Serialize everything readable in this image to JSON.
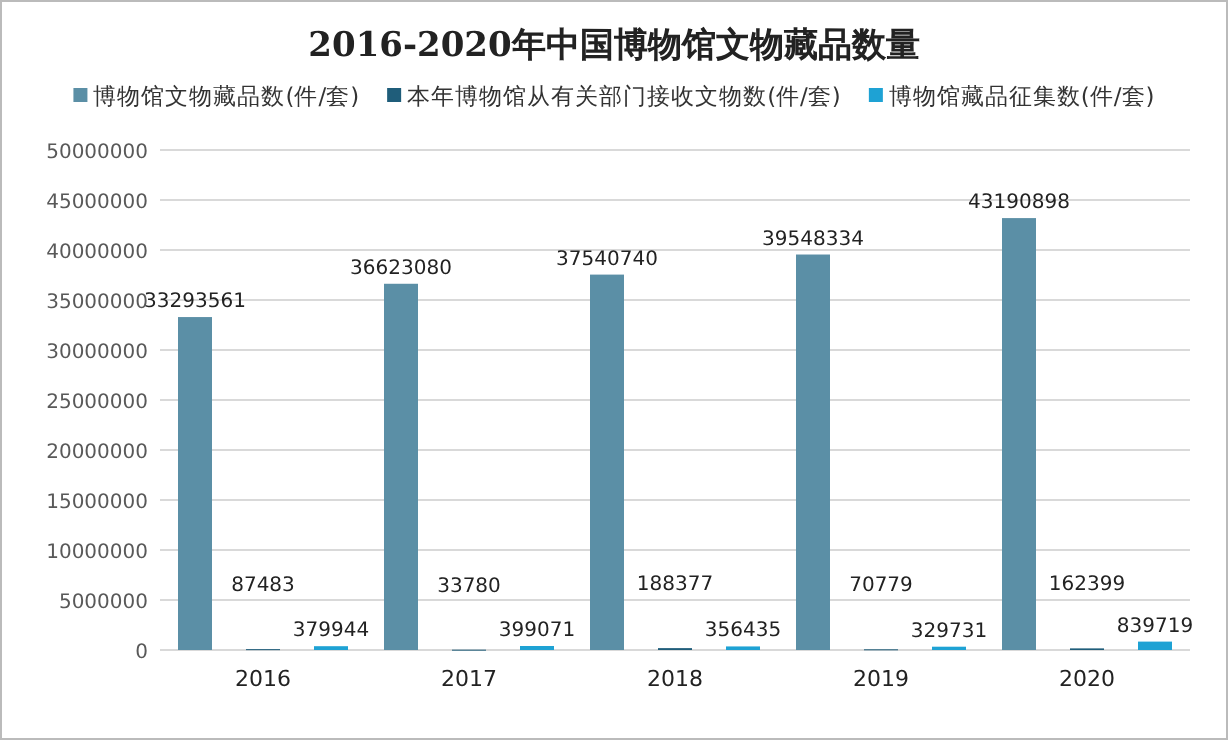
{
  "chart_data": {
    "type": "bar",
    "title": "2016-2020年中国博物馆文物藏品数量",
    "categories": [
      "2016",
      "2017",
      "2018",
      "2019",
      "2020"
    ],
    "series": [
      {
        "name": "博物馆文物藏品数(件/套)",
        "color": "#5b8fa6",
        "values": [
          33293561,
          36623080,
          37540740,
          39548334,
          43190898
        ]
      },
      {
        "name": "本年博物馆从有关部门接收文物数(件/套)",
        "color": "#1f5d7a",
        "values": [
          87483,
          33780,
          188377,
          70779,
          162399
        ]
      },
      {
        "name": "博物馆藏品征集数(件/套)",
        "color": "#1ea2d4",
        "values": [
          379944,
          399071,
          356435,
          329731,
          839719
        ]
      }
    ],
    "ylim": [
      0,
      50000000
    ],
    "yticks": [
      0,
      5000000,
      10000000,
      15000000,
      20000000,
      25000000,
      30000000,
      35000000,
      40000000,
      45000000,
      50000000
    ],
    "grid": "y",
    "legend": "top",
    "data_labels": true
  }
}
